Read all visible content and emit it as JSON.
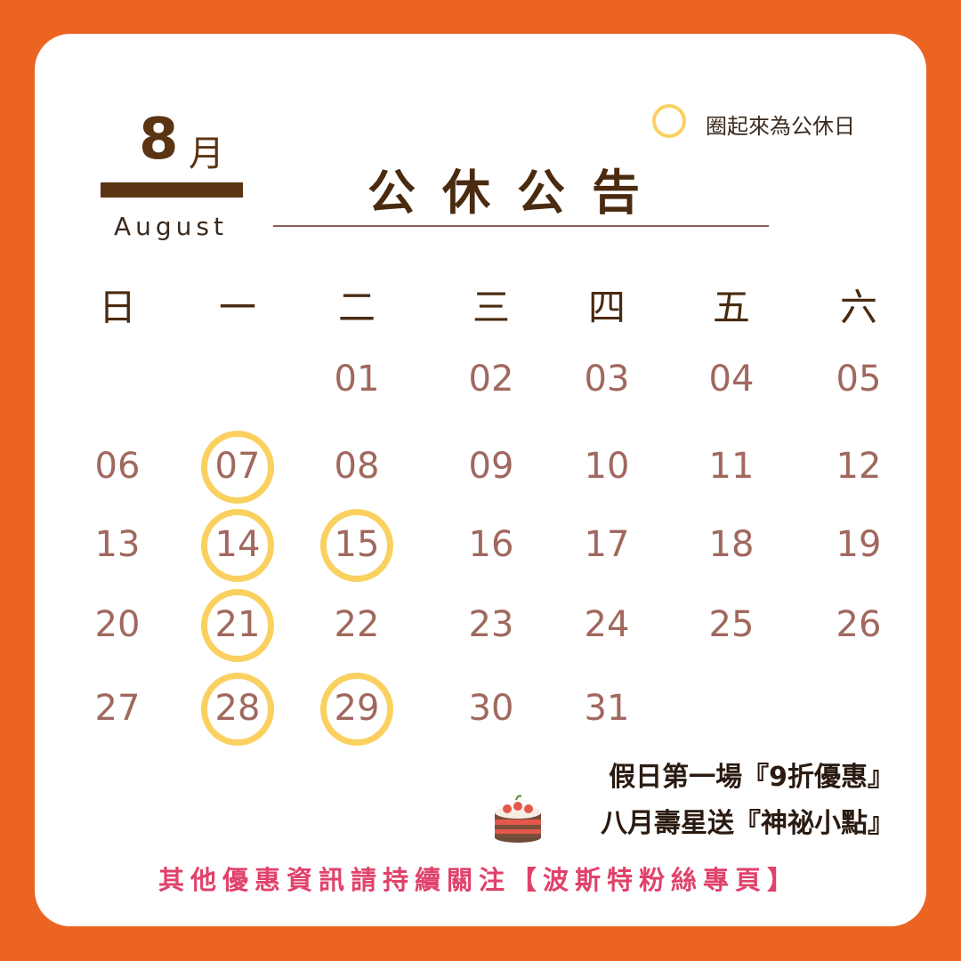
{
  "header": {
    "month_number": "8",
    "month_char": "月",
    "month_english": "August",
    "title": "公休公告",
    "legend_text": "圈起來為公休日"
  },
  "weekdays": [
    "日",
    "一",
    "二",
    "三",
    "四",
    "五",
    "六"
  ],
  "days": [
    {
      "label": "01",
      "weekday": 2,
      "week": 0,
      "holiday": false
    },
    {
      "label": "02",
      "weekday": 3,
      "week": 0,
      "holiday": false
    },
    {
      "label": "03",
      "weekday": 4,
      "week": 0,
      "holiday": false
    },
    {
      "label": "04",
      "weekday": 5,
      "week": 0,
      "holiday": false
    },
    {
      "label": "05",
      "weekday": 6,
      "week": 0,
      "holiday": false
    },
    {
      "label": "06",
      "weekday": 0,
      "week": 1,
      "holiday": false
    },
    {
      "label": "07",
      "weekday": 1,
      "week": 1,
      "holiday": true
    },
    {
      "label": "08",
      "weekday": 2,
      "week": 1,
      "holiday": false
    },
    {
      "label": "09",
      "weekday": 3,
      "week": 1,
      "holiday": false
    },
    {
      "label": "10",
      "weekday": 4,
      "week": 1,
      "holiday": false
    },
    {
      "label": "11",
      "weekday": 5,
      "week": 1,
      "holiday": false
    },
    {
      "label": "12",
      "weekday": 6,
      "week": 1,
      "holiday": false
    },
    {
      "label": "13",
      "weekday": 0,
      "week": 2,
      "holiday": false
    },
    {
      "label": "14",
      "weekday": 1,
      "week": 2,
      "holiday": true
    },
    {
      "label": "15",
      "weekday": 2,
      "week": 2,
      "holiday": true
    },
    {
      "label": "16",
      "weekday": 3,
      "week": 2,
      "holiday": false
    },
    {
      "label": "17",
      "weekday": 4,
      "week": 2,
      "holiday": false
    },
    {
      "label": "18",
      "weekday": 5,
      "week": 2,
      "holiday": false
    },
    {
      "label": "19",
      "weekday": 6,
      "week": 2,
      "holiday": false
    },
    {
      "label": "20",
      "weekday": 0,
      "week": 3,
      "holiday": false
    },
    {
      "label": "21",
      "weekday": 1,
      "week": 3,
      "holiday": true
    },
    {
      "label": "22",
      "weekday": 2,
      "week": 3,
      "holiday": false
    },
    {
      "label": "23",
      "weekday": 3,
      "week": 3,
      "holiday": false
    },
    {
      "label": "24",
      "weekday": 4,
      "week": 3,
      "holiday": false
    },
    {
      "label": "25",
      "weekday": 5,
      "week": 3,
      "holiday": false
    },
    {
      "label": "26",
      "weekday": 6,
      "week": 3,
      "holiday": false
    },
    {
      "label": "27",
      "weekday": 0,
      "week": 4,
      "holiday": false
    },
    {
      "label": "28",
      "weekday": 1,
      "week": 4,
      "holiday": true
    },
    {
      "label": "29",
      "weekday": 2,
      "week": 4,
      "holiday": true
    },
    {
      "label": "30",
      "weekday": 3,
      "week": 4,
      "holiday": false
    },
    {
      "label": "31",
      "weekday": 4,
      "week": 4,
      "holiday": false
    }
  ],
  "promos": {
    "line1": "假日第一場『9折優惠』",
    "line2": "八月壽星送『神祕小點』"
  },
  "footer": "其他優惠資訊請持續關注【波斯特粉絲專頁】",
  "colors": {
    "background": "#EC6422",
    "card": "#FFFFFF",
    "ring": "#FAD160",
    "day_number": "#A0685E",
    "heading": "#4A2B10",
    "footer": "#E0426B"
  },
  "icons": {
    "legend": "ring-icon",
    "cake": "cake-icon"
  }
}
